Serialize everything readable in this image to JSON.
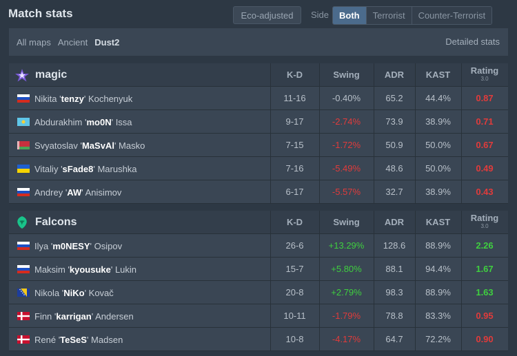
{
  "header": {
    "title": "Match stats",
    "eco_label": "Eco-adjusted",
    "side_label": "Side",
    "side_options": [
      "Both",
      "Terrorist",
      "Counter-Terrorist"
    ],
    "side_selected": "Both"
  },
  "maps": {
    "tabs": [
      "All maps",
      "Ancient",
      "Dust2"
    ],
    "active": "Dust2",
    "detailed_label": "Detailed stats"
  },
  "columns": {
    "kd": "K-D",
    "swing": "Swing",
    "adr": "ADR",
    "kast": "KAST",
    "rating": "Rating",
    "rating_version": "3.0"
  },
  "teams": [
    {
      "name": "magic",
      "logo": "magic-star-logo",
      "players": [
        {
          "first": "Nikita",
          "nick": "tenzy",
          "last": "Kochenyuk",
          "flag": "russia-flag",
          "kd": "11-16",
          "swing": "-0.40%",
          "adr": "65.2",
          "kast": "44.4%",
          "rating": "0.87"
        },
        {
          "first": "Abdurakhim",
          "nick": "mo0N",
          "last": "Issa",
          "flag": "kazakhstan-flag",
          "kd": "9-17",
          "swing": "-2.74%",
          "adr": "73.9",
          "kast": "38.9%",
          "rating": "0.71"
        },
        {
          "first": "Svyatoslav",
          "nick": "MaSvAl",
          "last": "Masko",
          "flag": "belarus-flag",
          "kd": "7-15",
          "swing": "-1.72%",
          "adr": "50.9",
          "kast": "50.0%",
          "rating": "0.67"
        },
        {
          "first": "Vitaliy",
          "nick": "sFade8",
          "last": "Marushka",
          "flag": "ukraine-flag",
          "kd": "7-16",
          "swing": "-5.49%",
          "adr": "48.6",
          "kast": "50.0%",
          "rating": "0.49"
        },
        {
          "first": "Andrey",
          "nick": "AW",
          "last": "Anisimov",
          "flag": "russia-flag",
          "kd": "6-17",
          "swing": "-5.57%",
          "adr": "32.7",
          "kast": "38.9%",
          "rating": "0.43"
        }
      ]
    },
    {
      "name": "Falcons",
      "logo": "falcons-logo",
      "players": [
        {
          "first": "Ilya",
          "nick": "m0NESY",
          "last": "Osipov",
          "flag": "russia-flag",
          "kd": "26-6",
          "swing": "+13.29%",
          "adr": "128.6",
          "kast": "88.9%",
          "rating": "2.26"
        },
        {
          "first": "Maksim",
          "nick": "kyousuke",
          "last": "Lukin",
          "flag": "russia-flag",
          "kd": "15-7",
          "swing": "+5.80%",
          "adr": "88.1",
          "kast": "94.4%",
          "rating": "1.67"
        },
        {
          "first": "Nikola",
          "nick": "NiKo",
          "last": "Kovač",
          "flag": "bosnia-flag",
          "kd": "20-8",
          "swing": "+2.79%",
          "adr": "98.3",
          "kast": "88.9%",
          "rating": "1.63"
        },
        {
          "first": "Finn",
          "nick": "karrigan",
          "last": "Andersen",
          "flag": "denmark-flag",
          "kd": "10-11",
          "swing": "-1.79%",
          "adr": "78.8",
          "kast": "83.3%",
          "rating": "0.95"
        },
        {
          "first": "René",
          "nick": "TeSeS",
          "last": "Madsen",
          "flag": "denmark-flag",
          "kd": "10-8",
          "swing": "-4.17%",
          "adr": "64.7",
          "kast": "72.2%",
          "rating": "0.90"
        }
      ]
    }
  ],
  "colors": {
    "negative": "#e13b3b",
    "positive": "#3fcf3f",
    "active_side": "#4b6b8c"
  }
}
